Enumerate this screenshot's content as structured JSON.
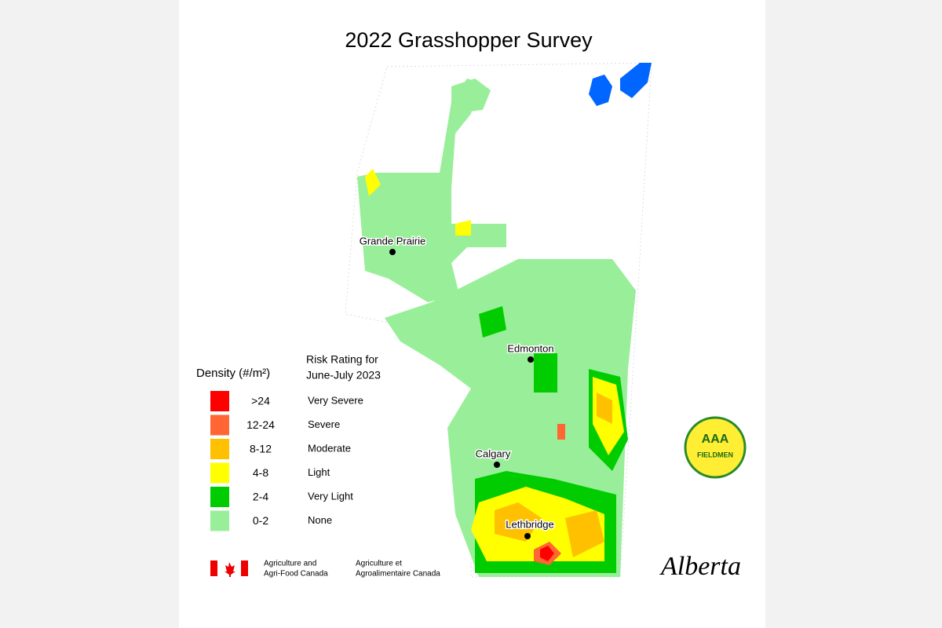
{
  "title": "2022 Grasshopper Survey",
  "legend": {
    "density_title": "Density (#/m²)",
    "risk_title": [
      "Risk Rating for",
      "June-July 2023"
    ],
    "items": [
      {
        "color": "#ff0000",
        "density": ">24",
        "risk": "Very Severe"
      },
      {
        "color": "#ff6633",
        "density": "12-24",
        "risk": "Severe"
      },
      {
        "color": "#ffc000",
        "density": "8-12",
        "risk": "Moderate"
      },
      {
        "color": "#ffff00",
        "density": "4-8",
        "risk": "Light"
      },
      {
        "color": "#00cc00",
        "density": "2-4",
        "risk": "Very Light"
      },
      {
        "color": "#99ee99",
        "density": "0-2",
        "risk": "None"
      }
    ]
  },
  "cities": [
    {
      "name": "Grande Prairie"
    },
    {
      "name": "Edmonton"
    },
    {
      "name": "Calgary"
    },
    {
      "name": "Lethbridge"
    }
  ],
  "logos": {
    "aaa": "AAA",
    "fieldmen": "FIELDMEN",
    "agri_en": [
      "Agriculture and",
      "Agri-Food Canada"
    ],
    "agri_fr": [
      "Agriculture et",
      "Agroalimentaire Canada"
    ],
    "alberta": "Alberta"
  }
}
